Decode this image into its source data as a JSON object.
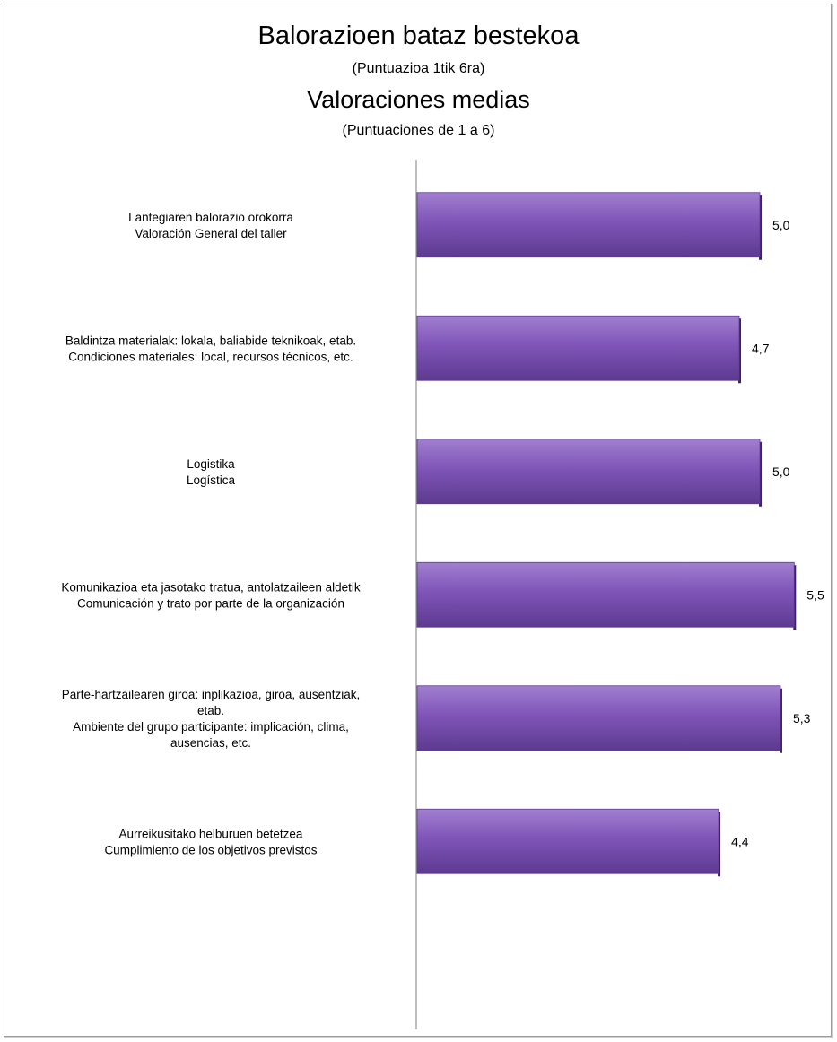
{
  "title": "Balorazioen bataz bestekoa",
  "subtitle": "(Puntuazioa 1tik 6ra)",
  "title2": "Valoraciones medias",
  "subtitle2": "(Puntuaciones de 1 a 6)",
  "colors": {
    "bar_light": "#a17fcf",
    "bar_mid": "#7f55b8",
    "bar_dark": "#5d3a90",
    "bar_edge": "#3c2168",
    "axis": "#7f7f7f"
  },
  "chart_data": {
    "type": "bar",
    "orientation": "horizontal",
    "title": "Balorazioen bataz bestekoa / Valoraciones medias",
    "categories": [
      [
        "Lantegiaren balorazio orokorra",
        "Valoración General del taller"
      ],
      [
        "Baldintza materialak: lokala, baliabide teknikoak, etab.",
        "Condiciones materiales: local, recursos técnicos, etc."
      ],
      [
        "Logistika",
        "Logística"
      ],
      [
        "Komunikazioa eta jasotako tratua, antolatzaileen aldetik",
        "Comunicación y trato por parte de la organización"
      ],
      [
        "Parte-hartzailearen giroa: inplikazioa, giroa, ausentziak,",
        "etab.",
        "Ambiente del grupo participante: implicación, clima,",
        "ausencias, etc."
      ],
      [
        "Aurreikusitako helburuen betetzea",
        "Cumplimiento de los objetivos previstos"
      ]
    ],
    "values": [
      5.0,
      4.7,
      5.0,
      5.5,
      5.3,
      4.4
    ],
    "value_labels": [
      "5,0",
      "4,7",
      "5,0",
      "5,5",
      "5,3",
      "4,4"
    ],
    "xlim": [
      0,
      6
    ],
    "grid": false,
    "legend": "none"
  }
}
